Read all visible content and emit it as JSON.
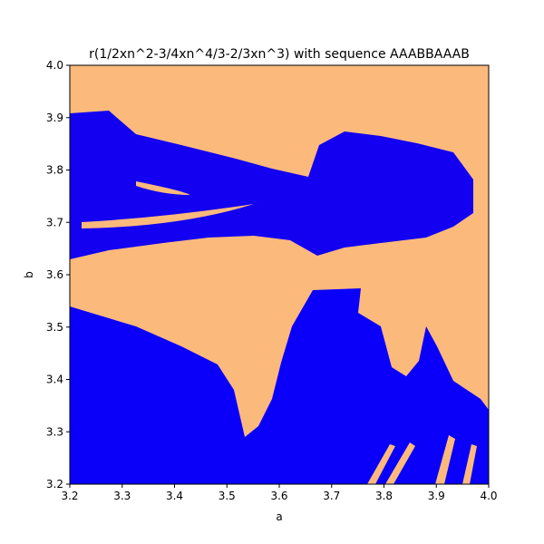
{
  "chart_data": {
    "type": "image",
    "title": "r(1/2xn^2-3/4xn^4/3-2/3xn^3) with sequence AAABBAAAB",
    "x_label": "a",
    "y_label": "b",
    "xlim": [
      3.2,
      4.0
    ],
    "ylim": [
      3.2,
      4.0
    ],
    "xticks": [
      3.2,
      3.3,
      3.4,
      3.5,
      3.6,
      3.7,
      3.8,
      3.9,
      {
        "value": 4,
        "label": "4.0"
      }
    ],
    "yticks": [
      3.2,
      3.3,
      3.4,
      3.5,
      3.6,
      3.7,
      3.8,
      3.9,
      {
        "value": 4,
        "label": "4.0"
      }
    ]
  }
}
